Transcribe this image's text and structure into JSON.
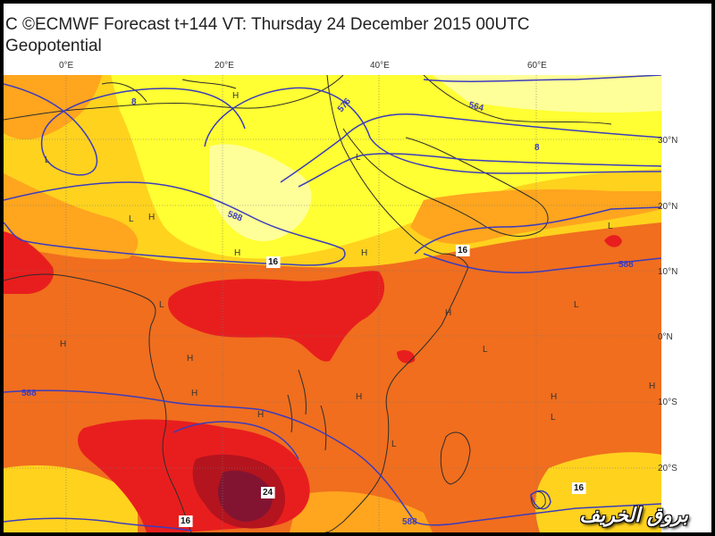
{
  "header": {
    "line1": "C ©ECMWF Forecast t+144 VT: Thursday 24 December 2015 00UTC",
    "line2": "Geopotential"
  },
  "axes": {
    "longitudes": [
      "0°E",
      "20°E",
      "40°E",
      "60°E"
    ],
    "latitudes": [
      "30°N",
      "20°N",
      "10°N",
      "0°N",
      "10°S",
      "20°S"
    ]
  },
  "contour_labels": [
    "564",
    "576",
    "588",
    "588",
    "588",
    "588",
    "16",
    "16",
    "16",
    "16",
    "24",
    "8",
    "8"
  ],
  "pressure_centers": [
    "H",
    "H",
    "H",
    "H",
    "H",
    "H",
    "H",
    "H",
    "H",
    "H",
    "H",
    "H",
    "L",
    "L",
    "L",
    "L",
    "L",
    "L",
    "L",
    "L",
    "L"
  ],
  "colors": {
    "yellow": "#ffff33",
    "light_yellow": "#ffff99",
    "gold": "#ffd21e",
    "orange": "#ffa51e",
    "dark_orange": "#f06e1e",
    "red": "#e81e1e",
    "dark_red": "#b4141e",
    "maroon": "#821432",
    "contour": "#3c3cbe",
    "coast": "#2d2d2d"
  },
  "watermark": "بروق الخريف"
}
